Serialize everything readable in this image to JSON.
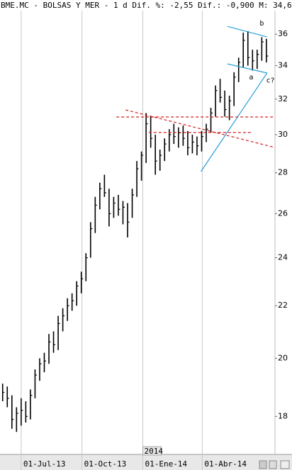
{
  "chart_data": {
    "type": "ohlc",
    "title": "BME.MC - BOLSAS Y MER -  1 d Dif. %: -2,55 Dif.: -0,900 M: 34,6",
    "log_scale": true,
    "color": "#000000",
    "x": [
      "2013-06-03",
      "2013-06-10",
      "2013-06-17",
      "2013-06-24",
      "2013-07-01",
      "2013-07-08",
      "2013-07-15",
      "2013-07-22",
      "2013-07-29",
      "2013-08-05",
      "2013-08-12",
      "2013-08-19",
      "2013-08-26",
      "2013-09-02",
      "2013-09-09",
      "2013-09-16",
      "2013-09-23",
      "2013-09-30",
      "2013-10-07",
      "2013-10-14",
      "2013-10-21",
      "2013-10-28",
      "2013-11-04",
      "2013-11-11",
      "2013-11-18",
      "2013-11-25",
      "2013-12-02",
      "2013-12-09",
      "2013-12-16",
      "2013-12-23",
      "2013-12-30",
      "2014-01-06",
      "2014-01-13",
      "2014-01-20",
      "2014-01-27",
      "2014-02-03",
      "2014-02-10",
      "2014-02-17",
      "2014-02-24",
      "2014-03-03",
      "2014-03-10",
      "2014-03-17",
      "2014-03-24",
      "2014-03-31",
      "2014-04-07",
      "2014-04-14",
      "2014-04-21",
      "2014-04-28",
      "2014-05-05",
      "2014-05-12",
      "2014-05-19",
      "2014-05-26",
      "2014-06-02",
      "2014-06-09",
      "2014-06-16",
      "2014-06-23",
      "2014-06-30",
      "2014-07-07"
    ],
    "high": [
      19.1,
      19.0,
      18.7,
      18.3,
      18.6,
      18.5,
      18.9,
      19.6,
      20.0,
      20.2,
      20.9,
      21.0,
      21.6,
      21.9,
      22.3,
      22.5,
      23.0,
      23.4,
      24.2,
      25.6,
      26.8,
      27.5,
      27.9,
      27.2,
      26.8,
      26.9,
      26.6,
      26.5,
      27.2,
      28.6,
      29.1,
      31.2,
      31.0,
      30.0,
      29.2,
      29.8,
      30.3,
      30.6,
      30.4,
      30.5,
      30.2,
      30.0,
      29.9,
      30.2,
      30.6,
      31.5,
      32.8,
      33.2,
      32.5,
      32.2,
      33.6,
      34.5,
      36.1,
      36.2,
      35.0,
      35.0,
      35.8,
      35.7
    ],
    "low": [
      18.5,
      18.3,
      17.6,
      17.5,
      17.7,
      17.8,
      17.9,
      18.6,
      19.2,
      19.5,
      19.8,
      20.2,
      20.3,
      21.0,
      21.4,
      21.8,
      22.0,
      22.5,
      23.0,
      24.0,
      25.1,
      26.2,
      26.8,
      25.4,
      25.8,
      25.9,
      25.5,
      24.9,
      25.8,
      26.8,
      27.6,
      28.5,
      29.3,
      27.9,
      28.1,
      28.6,
      29.1,
      29.5,
      29.3,
      29.4,
      28.9,
      29.0,
      28.9,
      29.1,
      29.6,
      30.1,
      31.0,
      31.8,
      31.0,
      30.8,
      31.6,
      33.0,
      33.9,
      34.0,
      33.7,
      33.8,
      34.3,
      34.2
    ],
    "close": [
      18.8,
      18.6,
      17.9,
      18.1,
      18.2,
      18.0,
      18.7,
      19.4,
      19.8,
      19.9,
      20.6,
      20.5,
      21.3,
      21.6,
      22.0,
      22.2,
      22.8,
      23.1,
      24.0,
      25.3,
      26.4,
      27.2,
      27.0,
      26.0,
      26.5,
      26.2,
      26.3,
      25.6,
      26.9,
      28.2,
      28.9,
      30.6,
      29.8,
      28.6,
      28.9,
      29.5,
      30.0,
      29.9,
      30.1,
      29.8,
      29.3,
      29.6,
      29.4,
      29.9,
      30.3,
      31.2,
      32.5,
      32.1,
      31.4,
      31.9,
      33.3,
      34.2,
      35.6,
      34.5,
      34.3,
      34.7,
      35.5,
      34.6
    ],
    "xlim": [
      "2013-05-30",
      "2014-07-20"
    ],
    "xticks": [
      {
        "value": "2013-07-01",
        "label": "01-Jul-13"
      },
      {
        "value": "2013-10-01",
        "label": "01-Oct-13"
      },
      {
        "value": "2014-01-01",
        "label": "01-Ene-14"
      },
      {
        "value": "2014-04-01",
        "label": "01-Abr-14"
      }
    ],
    "year_ticks": [
      {
        "value": "2014-01-01",
        "label": "2014"
      }
    ],
    "ylim": [
      16.8,
      38.3
    ],
    "yticks": [
      18,
      20,
      22,
      24,
      26,
      28,
      30,
      32,
      34,
      36
    ],
    "trendlines": [
      {
        "x1": "2014-05-09",
        "y1": 36.51,
        "x2": "2014-07-08",
        "y2": 35.82,
        "color": "#2a9fd8",
        "dash": false
      },
      {
        "x1": "2014-05-09",
        "y1": 34.11,
        "x2": "2014-07-08",
        "y2": 33.55,
        "color": "#2a9fd8",
        "dash": false
      },
      {
        "x1": "2014-03-30",
        "y1": 28.06,
        "x2": "2014-07-08",
        "y2": 33.55,
        "color": "#2a9fd8",
        "dash": false
      },
      {
        "x1": "2013-12-06",
        "y1": 31.38,
        "x2": "2014-07-20",
        "y2": 29.31,
        "color": "#d42020",
        "dash": true
      },
      {
        "x1": "2013-11-22",
        "y1": 30.98,
        "x2": "2014-07-20",
        "y2": 30.98,
        "color": "#d42020",
        "dash": true
      },
      {
        "x1": "2014-01-10",
        "y1": 30.12,
        "x2": "2014-06-16",
        "y2": 30.12,
        "color": "#d42020",
        "dash": true
      }
    ],
    "annotations": [
      {
        "text": "b",
        "x": "2014-06-30",
        "y": 36.7
      },
      {
        "text": "a",
        "x": "2014-06-14",
        "y": 33.3
      },
      {
        "text": "c?",
        "x": "2014-07-13",
        "y": 33.1
      }
    ]
  }
}
